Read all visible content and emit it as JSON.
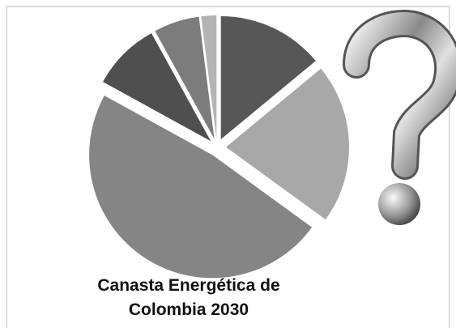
{
  "chart_data": {
    "type": "pie",
    "title": "Canasta Energética de Colombia 2030",
    "values": [
      14,
      21,
      48,
      9,
      6,
      2
    ],
    "colors": [
      "#575757",
      "#a8a8a8",
      "#858585",
      "#4f4f4f",
      "#7c7c7c",
      "#b4b4b4"
    ]
  }
}
